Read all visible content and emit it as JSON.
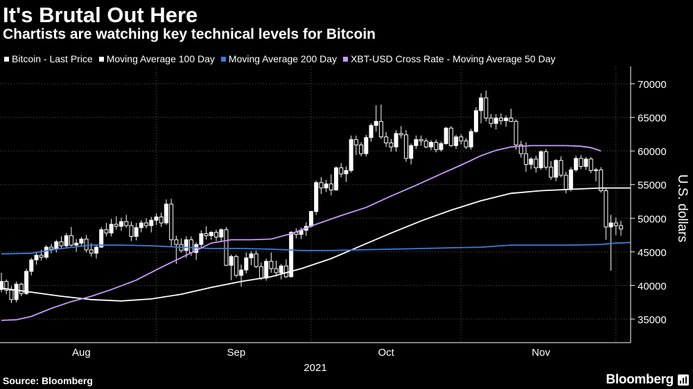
{
  "title": "It's Brutal Out Here",
  "subtitle": "Chartists are watching key technical levels for Bitcoin",
  "source": "Source: Bloomberg",
  "brand": "Bloomberg",
  "colors": {
    "background": "#000000",
    "candle": "#ffffff",
    "ma100": "#ffffff",
    "ma200": "#3b7ddd",
    "ma50": "#c79bff",
    "grid": "#5a5a5a"
  },
  "legend": [
    {
      "label": "Bitcoin - Last Price",
      "color": "#ffffff"
    },
    {
      "label": "Moving Average 100 Day",
      "color": "#ffffff"
    },
    {
      "label": "Moving Average 200 Day",
      "color": "#3b7ddd"
    },
    {
      "label": "XBT-USD Cross Rate - Moving Average 50 Day",
      "color": "#c79bff"
    }
  ],
  "chart_data": {
    "type": "candlestick",
    "title": "It's Brutal Out Here",
    "subtitle": "Chartists are watching key technical levels for Bitcoin",
    "ylabel": "U.S. dollars",
    "xlabel": "2021",
    "ylim": [
      30000,
      72000
    ],
    "y_ticks": [
      35000,
      40000,
      45000,
      50000,
      55000,
      60000,
      65000,
      70000
    ],
    "y_tick_labels": [
      "35000",
      "40000",
      "45000",
      "50000",
      "55000",
      "60000",
      "65000",
      "70000"
    ],
    "x_range_days": [
      0,
      140
    ],
    "x_ticks": [
      {
        "label": "Aug",
        "day": 16
      },
      {
        "label": "Sep",
        "day": 47
      },
      {
        "label": "Oct",
        "day": 77
      },
      {
        "label": "Nov",
        "day": 108
      }
    ],
    "x_separators_days": [
      31,
      62,
      92,
      123
    ],
    "year_label": "2021",
    "grid": "horizontal dotted",
    "legend_position": "top",
    "candles": [
      [
        39400,
        41900,
        39000,
        40600
      ],
      [
        40600,
        40900,
        38700,
        39300
      ],
      [
        39300,
        39900,
        37400,
        37900
      ],
      [
        37900,
        40600,
        37500,
        40200
      ],
      [
        40200,
        40400,
        38400,
        38800
      ],
      [
        38800,
        42500,
        38600,
        42100
      ],
      [
        42100,
        44100,
        41500,
        43800
      ],
      [
        43800,
        45000,
        43100,
        44500
      ],
      [
        44500,
        45300,
        43700,
        44200
      ],
      [
        44200,
        46000,
        43900,
        45700
      ],
      [
        45700,
        46200,
        44800,
        45400
      ],
      [
        45400,
        46800,
        44900,
        46500
      ],
      [
        46500,
        47300,
        45400,
        45900
      ],
      [
        45900,
        47800,
        45500,
        47400
      ],
      [
        47400,
        48700,
        45800,
        46000
      ],
      [
        46000,
        46900,
        45000,
        46300
      ],
      [
        46300,
        47200,
        45800,
        46900
      ],
      [
        46900,
        47500,
        44900,
        45300
      ],
      [
        45300,
        46300,
        44300,
        44800
      ],
      [
        44800,
        46100,
        44000,
        45700
      ],
      [
        45700,
        48700,
        45600,
        48300
      ],
      [
        48300,
        49300,
        47300,
        47800
      ],
      [
        47800,
        49900,
        47300,
        49100
      ],
      [
        49100,
        50300,
        48300,
        48800
      ],
      [
        48800,
        50100,
        48100,
        49500
      ],
      [
        49500,
        50500,
        48600,
        48900
      ],
      [
        48900,
        49500,
        46600,
        47300
      ],
      [
        47300,
        49300,
        46700,
        48600
      ],
      [
        48600,
        49700,
        47900,
        49300
      ],
      [
        49300,
        50000,
        48500,
        48900
      ],
      [
        48900,
        50200,
        47900,
        49700
      ],
      [
        49700,
        50700,
        49000,
        50200
      ],
      [
        50200,
        50800,
        48700,
        49300
      ],
      [
        49300,
        52800,
        49000,
        52100
      ],
      [
        52100,
        52900,
        45700,
        46800
      ],
      [
        46800,
        47400,
        43200,
        46100
      ],
      [
        46100,
        47000,
        44900,
        45200
      ],
      [
        45200,
        47300,
        44100,
        46800
      ],
      [
        46800,
        47300,
        44400,
        44900
      ],
      [
        44900,
        46400,
        43800,
        46100
      ],
      [
        46100,
        48200,
        45700,
        47700
      ],
      [
        47700,
        48800,
        46800,
        47400
      ],
      [
        47400,
        48100,
        46800,
        47900
      ],
      [
        47900,
        48300,
        46600,
        47200
      ],
      [
        47200,
        48500,
        46500,
        48300
      ],
      [
        48300,
        48700,
        42900,
        43000
      ],
      [
        43000,
        44600,
        40800,
        44300
      ],
      [
        44300,
        44600,
        41200,
        41500
      ],
      [
        41500,
        43100,
        39800,
        42300
      ],
      [
        42300,
        44900,
        41800,
        44100
      ],
      [
        44100,
        45100,
        43000,
        44700
      ],
      [
        44700,
        45200,
        42600,
        42800
      ],
      [
        42800,
        43400,
        40800,
        41100
      ],
      [
        41100,
        44000,
        40700,
        43600
      ],
      [
        43600,
        44900,
        41900,
        42500
      ],
      [
        42500,
        43700,
        41300,
        41900
      ],
      [
        41900,
        43200,
        40900,
        42900
      ],
      [
        42900,
        43900,
        41100,
        41300
      ],
      [
        41300,
        48100,
        41200,
        47900
      ],
      [
        47900,
        48500,
        47000,
        47600
      ],
      [
        47600,
        48600,
        46900,
        48200
      ],
      [
        48200,
        49400,
        47400,
        48800
      ],
      [
        48800,
        51100,
        48600,
        51000
      ],
      [
        51000,
        55600,
        50500,
        55300
      ],
      [
        55300,
        56100,
        53600,
        54500
      ],
      [
        54500,
        55700,
        53900,
        55100
      ],
      [
        55100,
        56500,
        53400,
        54200
      ],
      [
        54200,
        57700,
        54100,
        57500
      ],
      [
        57500,
        58200,
        56100,
        56600
      ],
      [
        56600,
        57700,
        55400,
        57100
      ],
      [
        57100,
        62300,
        56800,
        61700
      ],
      [
        61700,
        62300,
        59400,
        60900
      ],
      [
        60900,
        61300,
        59200,
        59600
      ],
      [
        59600,
        62400,
        59200,
        62000
      ],
      [
        62000,
        64100,
        61400,
        63800
      ],
      [
        63800,
        66800,
        62900,
        64400
      ],
      [
        64400,
        66900,
        61800,
        62100
      ],
      [
        62100,
        62800,
        60600,
        61200
      ],
      [
        61200,
        61800,
        59900,
        60600
      ],
      [
        60600,
        63100,
        59900,
        62600
      ],
      [
        62600,
        63700,
        61900,
        62400
      ],
      [
        62400,
        63100,
        58400,
        58900
      ],
      [
        58900,
        61100,
        58000,
        60800
      ],
      [
        60800,
        62300,
        60300,
        61700
      ],
      [
        61700,
        62300,
        60800,
        61500
      ],
      [
        61500,
        61900,
        60400,
        60600
      ],
      [
        60600,
        61600,
        60100,
        61300
      ],
      [
        61300,
        61700,
        59800,
        60200
      ],
      [
        60200,
        61400,
        59900,
        61100
      ],
      [
        61100,
        63600,
        60900,
        63400
      ],
      [
        63400,
        63700,
        60600,
        60800
      ],
      [
        60800,
        62400,
        60300,
        62100
      ],
      [
        62100,
        62500,
        61000,
        61500
      ],
      [
        61500,
        61900,
        60300,
        60600
      ],
      [
        60600,
        63300,
        60200,
        62900
      ],
      [
        62900,
        66500,
        62700,
        66000
      ],
      [
        66000,
        68600,
        64100,
        67900
      ],
      [
        67900,
        69000,
        64400,
        64900
      ],
      [
        64900,
        65500,
        63500,
        64100
      ],
      [
        64100,
        65500,
        63200,
        64900
      ],
      [
        64900,
        65600,
        63900,
        64500
      ],
      [
        64500,
        65300,
        63600,
        64900
      ],
      [
        64900,
        66300,
        64300,
        64400
      ],
      [
        64400,
        64700,
        60200,
        60900
      ],
      [
        60900,
        61500,
        59000,
        59600
      ],
      [
        59600,
        61300,
        56900,
        58000
      ],
      [
        58000,
        59100,
        57300,
        58800
      ],
      [
        58800,
        59300,
        56800,
        57500
      ],
      [
        57500,
        60100,
        57200,
        59900
      ],
      [
        59900,
        60300,
        57200,
        57600
      ],
      [
        57600,
        58500,
        55700,
        56100
      ],
      [
        56100,
        58800,
        55500,
        58600
      ],
      [
        58600,
        59200,
        56100,
        56400
      ],
      [
        56400,
        56900,
        53700,
        54300
      ],
      [
        54300,
        57600,
        54000,
        57200
      ],
      [
        57200,
        59300,
        56900,
        58900
      ],
      [
        58900,
        59400,
        57300,
        57700
      ],
      [
        57700,
        59100,
        57200,
        58800
      ],
      [
        58800,
        59100,
        56700,
        57100
      ],
      [
        57100,
        57500,
        55500,
        57200
      ],
      [
        57200,
        57600,
        53800,
        54100
      ],
      [
        54100,
        54400,
        46800,
        48700
      ],
      [
        48700,
        50500,
        42200,
        49300
      ],
      [
        49300,
        50100,
        47500,
        48900
      ],
      [
        48900,
        49600,
        47400,
        48400
      ]
    ],
    "series": [
      {
        "name": "Moving Average 100 Day",
        "points": [
          [
            0,
            39600
          ],
          [
            6,
            39000
          ],
          [
            12,
            38400
          ],
          [
            18,
            37900
          ],
          [
            24,
            37700
          ],
          [
            30,
            38000
          ],
          [
            36,
            38700
          ],
          [
            42,
            39700
          ],
          [
            48,
            40600
          ],
          [
            54,
            41300
          ],
          [
            60,
            42500
          ],
          [
            66,
            44000
          ],
          [
            72,
            45900
          ],
          [
            78,
            47800
          ],
          [
            84,
            49600
          ],
          [
            90,
            51200
          ],
          [
            96,
            52600
          ],
          [
            102,
            53700
          ],
          [
            108,
            54100
          ],
          [
            114,
            54300
          ],
          [
            120,
            54500
          ],
          [
            126,
            54500
          ]
        ]
      },
      {
        "name": "Moving Average 200 Day",
        "points": [
          [
            0,
            44700
          ],
          [
            6,
            44800
          ],
          [
            12,
            45500
          ],
          [
            18,
            46000
          ],
          [
            24,
            46000
          ],
          [
            30,
            45900
          ],
          [
            36,
            45700
          ],
          [
            42,
            45500
          ],
          [
            48,
            45500
          ],
          [
            54,
            45400
          ],
          [
            60,
            45200
          ],
          [
            66,
            45200
          ],
          [
            72,
            45300
          ],
          [
            78,
            45400
          ],
          [
            84,
            45500
          ],
          [
            90,
            45600
          ],
          [
            96,
            45700
          ],
          [
            102,
            46000
          ],
          [
            108,
            46000
          ],
          [
            114,
            46000
          ],
          [
            120,
            46100
          ],
          [
            123,
            46300
          ],
          [
            126,
            46400
          ]
        ]
      },
      {
        "name": "XBT-USD Cross Rate - Moving Average 50 Day",
        "points": [
          [
            0,
            34800
          ],
          [
            3,
            34900
          ],
          [
            6,
            35400
          ],
          [
            10,
            36600
          ],
          [
            14,
            37600
          ],
          [
            18,
            38400
          ],
          [
            22,
            39400
          ],
          [
            27,
            40800
          ],
          [
            32,
            42700
          ],
          [
            37,
            44500
          ],
          [
            42,
            46300
          ],
          [
            46,
            46800
          ],
          [
            50,
            46800
          ],
          [
            54,
            46900
          ],
          [
            58,
            47700
          ],
          [
            63,
            49100
          ],
          [
            68,
            50400
          ],
          [
            73,
            51600
          ],
          [
            78,
            53300
          ],
          [
            83,
            54900
          ],
          [
            88,
            56600
          ],
          [
            92,
            57900
          ],
          [
            96,
            59300
          ],
          [
            99,
            60100
          ],
          [
            102,
            60600
          ],
          [
            106,
            60800
          ],
          [
            110,
            60800
          ],
          [
            113,
            60800
          ],
          [
            116,
            60700
          ],
          [
            118,
            60500
          ],
          [
            120,
            60000
          ]
        ]
      }
    ]
  }
}
